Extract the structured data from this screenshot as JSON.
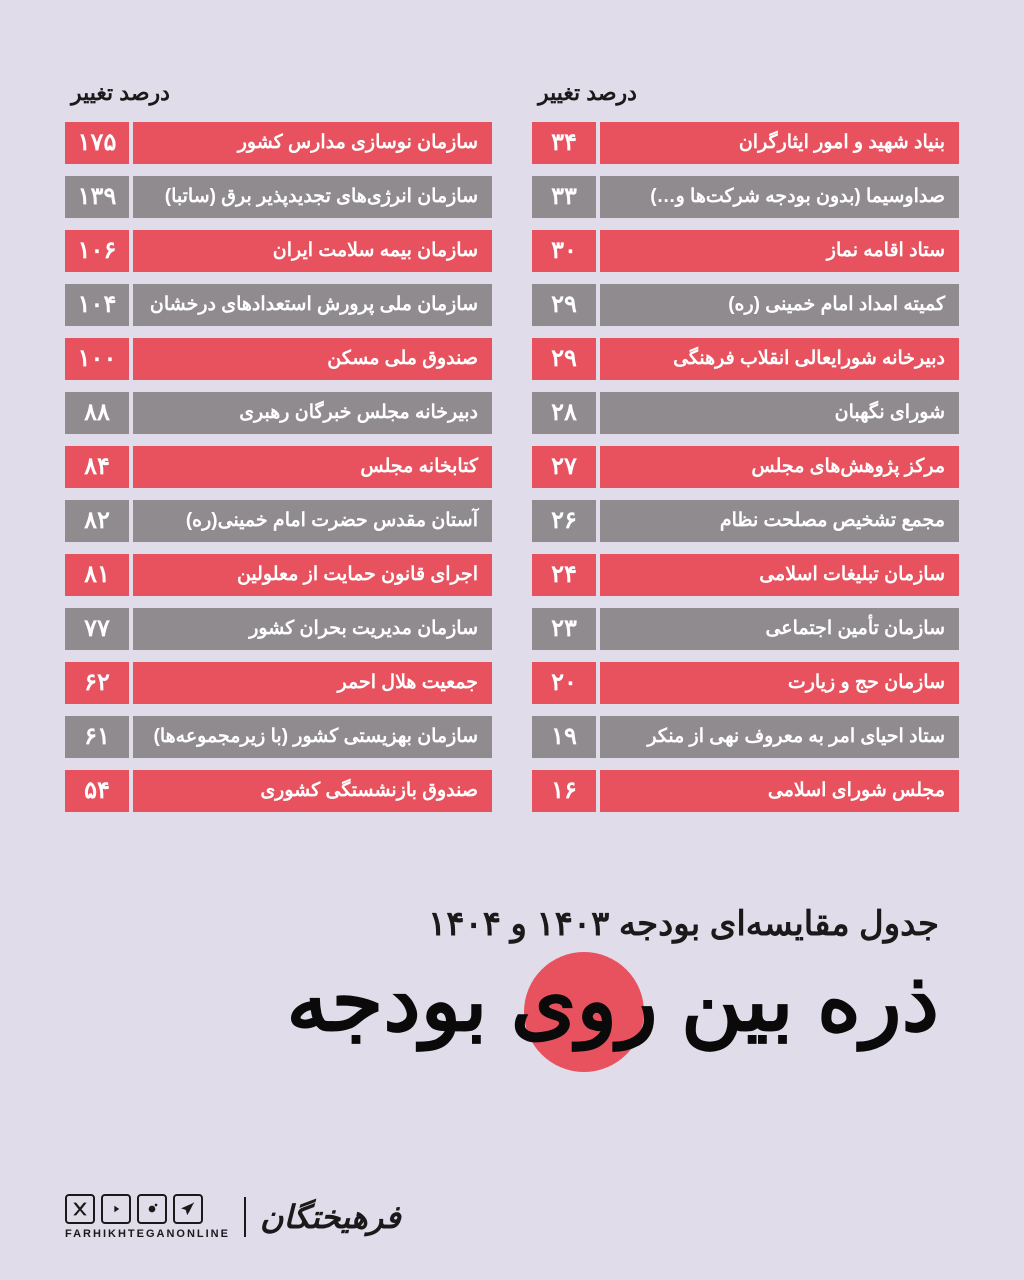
{
  "colors": {
    "red": "#e8515e",
    "gray": "#8f8b8f",
    "background": "#e1dce9",
    "text_dark": "#1a1a1a",
    "text_light": "#ffffff"
  },
  "header_label": "درصد تغییر",
  "right_column": [
    {
      "name": "سازمان نوسازی مدارس کشور",
      "value": "۱۷۵",
      "color": "red"
    },
    {
      "name": "سازمان انرژی‌های تجدیدپذیر برق (ساتبا)",
      "value": "۱۳۹",
      "color": "gray"
    },
    {
      "name": "سازمان بیمه سلامت ایران",
      "value": "۱۰۶",
      "color": "red"
    },
    {
      "name": "سازمان ملی پرورش استعدادهای درخشان",
      "value": "۱۰۴",
      "color": "gray"
    },
    {
      "name": "صندوق ملی مسکن",
      "value": "۱۰۰",
      "color": "red"
    },
    {
      "name": "دبیرخانه مجلس خبرگان رهبری",
      "value": "۸۸",
      "color": "gray"
    },
    {
      "name": "کتابخانه مجلس",
      "value": "۸۴",
      "color": "red"
    },
    {
      "name": "آستان مقدس حضرت امام خمینی(ره)",
      "value": "۸۲",
      "color": "gray"
    },
    {
      "name": "اجرای قانون حمایت از معلولین",
      "value": "۸۱",
      "color": "red"
    },
    {
      "name": "سازمان مدیریت بحران کشور",
      "value": "۷۷",
      "color": "gray"
    },
    {
      "name": "جمعیت هلال احمر",
      "value": "۶۲",
      "color": "red"
    },
    {
      "name": "سازمان بهزیستی کشور (با زیرمجموعه‌ها)",
      "value": "۶۱",
      "color": "gray"
    },
    {
      "name": "صندوق بازنشستگی کشوری",
      "value": "۵۴",
      "color": "red"
    }
  ],
  "left_column": [
    {
      "name": "بنیاد شهید و امور ایثارگران",
      "value": "۳۴",
      "color": "red"
    },
    {
      "name": "صداوسیما (بدون بودجه شرکت‌ها و…)",
      "value": "۳۳",
      "color": "gray"
    },
    {
      "name": "ستاد اقامه نماز",
      "value": "۳۰",
      "color": "red"
    },
    {
      "name": "کمیته امداد امام خمینی (ره)",
      "value": "۲۹",
      "color": "gray"
    },
    {
      "name": "دبیرخانه شورایعالی انقلاب فرهنگی",
      "value": "۲۹",
      "color": "red"
    },
    {
      "name": "شورای نگهبان",
      "value": "۲۸",
      "color": "gray"
    },
    {
      "name": "مرکز پژوهش‌های مجلس",
      "value": "۲۷",
      "color": "red"
    },
    {
      "name": "مجمع تشخیص مصلحت نظام",
      "value": "۲۶",
      "color": "gray"
    },
    {
      "name": "سازمان تبلیغات اسلامی",
      "value": "۲۴",
      "color": "red"
    },
    {
      "name": "سازمان تأمین اجتماعی",
      "value": "۲۳",
      "color": "gray"
    },
    {
      "name": "سازمان حج و زیارت",
      "value": "۲۰",
      "color": "red"
    },
    {
      "name": "ستاد احیای امر به معروف نهی از منکر",
      "value": "۱۹",
      "color": "gray"
    },
    {
      "name": "مجلس شورای اسلامی",
      "value": "۱۶",
      "color": "red"
    }
  ],
  "subtitle": "جدول مقایسه‌ای بودجه ۱۴۰۳ و ۱۴۰۴",
  "main_title": "ذره بین روی بودجه",
  "brand_name": "فرهیختگان",
  "handle": "FARHIKHTEGANONLINE"
}
